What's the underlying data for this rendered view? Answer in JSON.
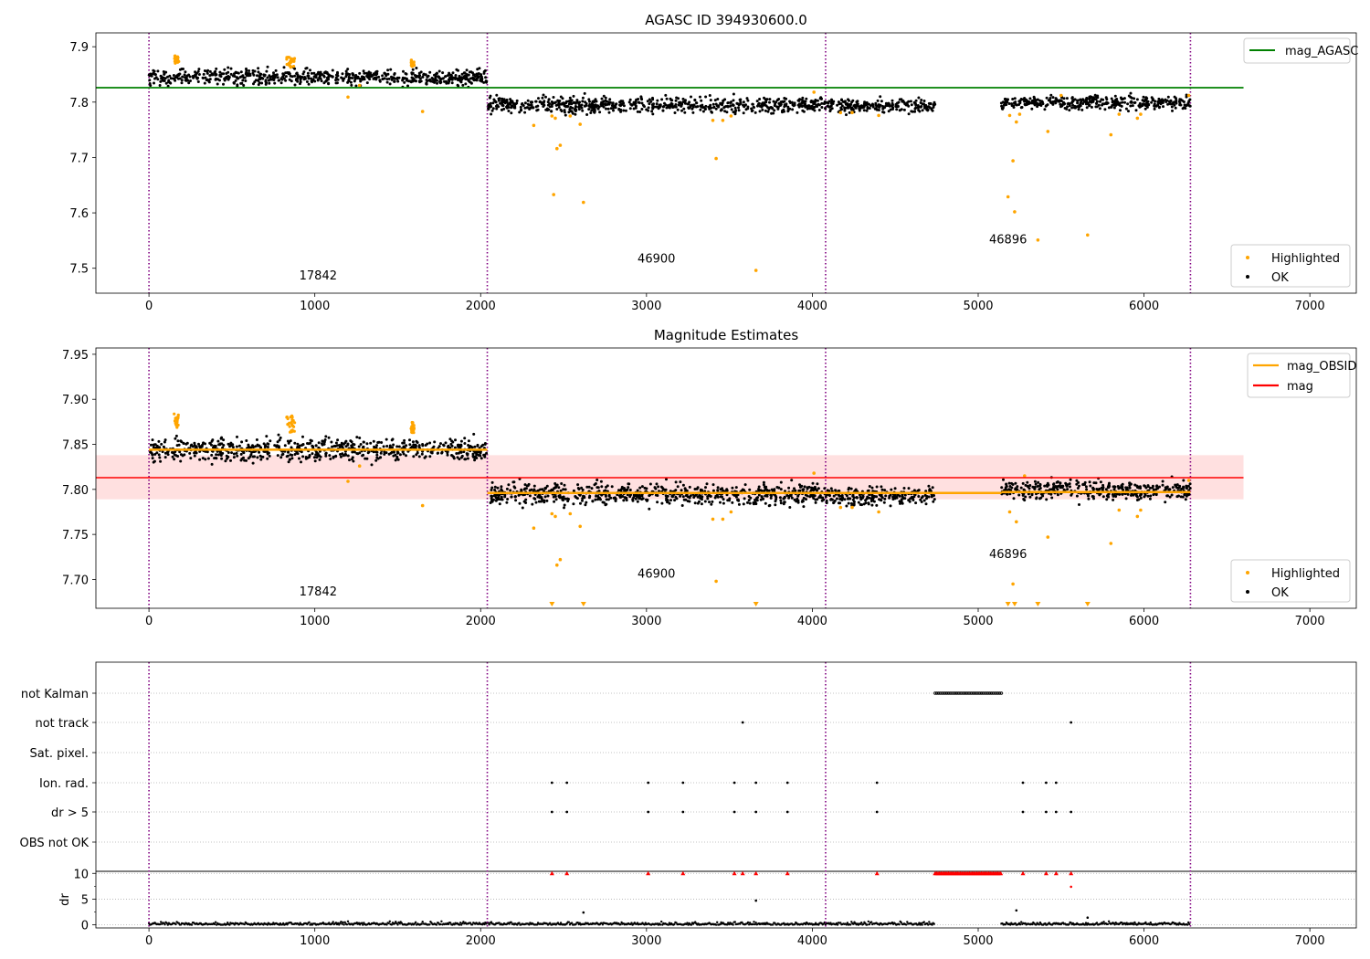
{
  "chart_data": [
    {
      "type": "scatter",
      "title": "AGASC ID 394930600.0",
      "xlim": [
        -320,
        7280
      ],
      "ylim": [
        7.455,
        7.925
      ],
      "x_ticks": [
        0,
        1000,
        2000,
        3000,
        4000,
        5000,
        6000,
        7000
      ],
      "y_ticks": [
        7.5,
        7.6,
        7.7,
        7.8,
        7.9
      ],
      "y_tick_labels": [
        "7.5",
        "7.6",
        "7.7",
        "7.8",
        "7.9"
      ],
      "obsid_boundaries": [
        0,
        2040,
        4080,
        6280
      ],
      "obsid_labels": [
        {
          "text": "17842",
          "x": 1020,
          "y": 7.48
        },
        {
          "text": "46900",
          "x": 3060,
          "y": 7.51
        },
        {
          "text": "46896",
          "x": 5180,
          "y": 7.545
        }
      ],
      "reference_line": {
        "name": "mag_AGASC",
        "value": 7.826,
        "x_range": [
          -320,
          6600
        ],
        "color": "#008000"
      },
      "ok_segments": [
        {
          "x0": 0,
          "x1": 2040,
          "mean": 7.845,
          "spread": 0.007
        },
        {
          "x0": 2040,
          "x1": 4080,
          "mean": 7.795,
          "spread": 0.007
        },
        {
          "x0": 4080,
          "x1": 4740,
          "mean": 7.793,
          "spread": 0.006
        },
        {
          "x0": 5140,
          "x1": 6280,
          "mean": 7.799,
          "spread": 0.006
        }
      ],
      "highlighted_clusters": [
        {
          "x0": 150,
          "x1": 180,
          "y0": 7.868,
          "y1": 7.884
        },
        {
          "x0": 830,
          "x1": 880,
          "y0": 7.862,
          "y1": 7.882
        },
        {
          "x0": 1580,
          "x1": 1600,
          "y0": 7.862,
          "y1": 7.876
        }
      ],
      "highlighted_points": [
        {
          "x": 1200,
          "y": 7.809
        },
        {
          "x": 1270,
          "y": 7.83
        },
        {
          "x": 1650,
          "y": 7.783
        },
        {
          "x": 2320,
          "y": 7.758
        },
        {
          "x": 2430,
          "y": 7.775
        },
        {
          "x": 2440,
          "y": 7.633
        },
        {
          "x": 2450,
          "y": 7.771
        },
        {
          "x": 2460,
          "y": 7.716
        },
        {
          "x": 2480,
          "y": 7.722
        },
        {
          "x": 2540,
          "y": 7.775
        },
        {
          "x": 2600,
          "y": 7.76
        },
        {
          "x": 2620,
          "y": 7.619
        },
        {
          "x": 3400,
          "y": 7.767
        },
        {
          "x": 3420,
          "y": 7.698
        },
        {
          "x": 3460,
          "y": 7.767
        },
        {
          "x": 3510,
          "y": 7.775
        },
        {
          "x": 3660,
          "y": 7.496
        },
        {
          "x": 4010,
          "y": 7.818
        },
        {
          "x": 4170,
          "y": 7.781
        },
        {
          "x": 4240,
          "y": 7.781
        },
        {
          "x": 4400,
          "y": 7.776
        },
        {
          "x": 5180,
          "y": 7.629
        },
        {
          "x": 5190,
          "y": 7.776
        },
        {
          "x": 5210,
          "y": 7.694
        },
        {
          "x": 5220,
          "y": 7.602
        },
        {
          "x": 5230,
          "y": 7.764
        },
        {
          "x": 5250,
          "y": 7.778
        },
        {
          "x": 5360,
          "y": 7.551
        },
        {
          "x": 5420,
          "y": 7.747
        },
        {
          "x": 5660,
          "y": 7.56
        },
        {
          "x": 5800,
          "y": 7.741
        },
        {
          "x": 5850,
          "y": 7.778
        },
        {
          "x": 5960,
          "y": 7.771
        },
        {
          "x": 5980,
          "y": 7.778
        },
        {
          "x": 6270,
          "y": 7.812
        },
        {
          "x": 5500,
          "y": 7.812
        }
      ],
      "legend_upper": [
        {
          "name": "mag_AGASC",
          "color": "#008000"
        }
      ],
      "legend_lower": [
        {
          "name": "Highlighted",
          "color": "#ffa500"
        },
        {
          "name": "OK",
          "color": "#000000"
        }
      ]
    },
    {
      "type": "scatter",
      "title": "Magnitude Estimates",
      "xlim": [
        -320,
        7280
      ],
      "ylim": [
        7.668,
        7.957
      ],
      "x_ticks": [
        0,
        1000,
        2000,
        3000,
        4000,
        5000,
        6000,
        7000
      ],
      "y_ticks": [
        7.7,
        7.75,
        7.8,
        7.85,
        7.9,
        7.95
      ],
      "y_tick_labels": [
        "7.70",
        "7.75",
        "7.80",
        "7.85",
        "7.90",
        "7.95"
      ],
      "obsid_boundaries": [
        0,
        2040,
        4080,
        6280
      ],
      "obsid_labels": [
        {
          "text": "17842",
          "x": 1020,
          "y": 7.682
        },
        {
          "text": "46900",
          "x": 3060,
          "y": 7.702
        },
        {
          "text": "46896",
          "x": 5180,
          "y": 7.724
        }
      ],
      "mean_band": {
        "name": "mag",
        "value": 7.813,
        "low": 7.789,
        "high": 7.838,
        "x_range": [
          -320,
          6600
        ],
        "color": "#ff0000"
      },
      "obsid_means": [
        {
          "x0": 0,
          "x1": 2040,
          "value": 7.844
        },
        {
          "x0": 2040,
          "x1": 5140,
          "value": 7.796
        },
        {
          "x0": 5140,
          "x1": 6280,
          "value": 7.797
        }
      ],
      "ok_segments": [
        {
          "x0": 0,
          "x1": 2040,
          "mean": 7.844,
          "spread": 0.006
        },
        {
          "x0": 2040,
          "x1": 4080,
          "mean": 7.795,
          "spread": 0.006
        },
        {
          "x0": 4080,
          "x1": 4740,
          "mean": 7.793,
          "spread": 0.005
        },
        {
          "x0": 5140,
          "x1": 6280,
          "mean": 7.799,
          "spread": 0.005
        }
      ],
      "highlighted_clusters": [
        {
          "x0": 150,
          "x1": 180,
          "y0": 7.868,
          "y1": 7.884
        },
        {
          "x0": 830,
          "x1": 880,
          "y0": 7.862,
          "y1": 7.882
        },
        {
          "x0": 1580,
          "x1": 1600,
          "y0": 7.862,
          "y1": 7.876
        }
      ],
      "highlighted_points": [
        {
          "x": 1200,
          "y": 7.809
        },
        {
          "x": 1270,
          "y": 7.826
        },
        {
          "x": 1650,
          "y": 7.782
        },
        {
          "x": 2320,
          "y": 7.757
        },
        {
          "x": 2430,
          "y": 7.773
        },
        {
          "x": 2450,
          "y": 7.77
        },
        {
          "x": 2460,
          "y": 7.716
        },
        {
          "x": 2480,
          "y": 7.722
        },
        {
          "x": 2540,
          "y": 7.773
        },
        {
          "x": 2600,
          "y": 7.759
        },
        {
          "x": 3400,
          "y": 7.767
        },
        {
          "x": 3420,
          "y": 7.698
        },
        {
          "x": 3460,
          "y": 7.767
        },
        {
          "x": 3510,
          "y": 7.775
        },
        {
          "x": 4010,
          "y": 7.818
        },
        {
          "x": 4170,
          "y": 7.78
        },
        {
          "x": 4240,
          "y": 7.78
        },
        {
          "x": 4400,
          "y": 7.775
        },
        {
          "x": 5190,
          "y": 7.775
        },
        {
          "x": 5210,
          "y": 7.695
        },
        {
          "x": 5230,
          "y": 7.764
        },
        {
          "x": 5420,
          "y": 7.747
        },
        {
          "x": 5800,
          "y": 7.74
        },
        {
          "x": 5850,
          "y": 7.777
        },
        {
          "x": 5960,
          "y": 7.77
        },
        {
          "x": 5980,
          "y": 7.777
        },
        {
          "x": 6270,
          "y": 7.81
        },
        {
          "x": 5280,
          "y": 7.815
        }
      ],
      "clipped_points_x": [
        2430,
        2620,
        3660,
        5180,
        5220,
        5360,
        5660
      ],
      "legend_upper": [
        {
          "name": "mag_OBSID",
          "color": "#ffa500"
        },
        {
          "name": "mag",
          "color": "#ff0000"
        }
      ],
      "legend_lower": [
        {
          "name": "Highlighted",
          "color": "#ffa500"
        },
        {
          "name": "OK",
          "color": "#000000"
        }
      ]
    },
    {
      "type": "scatter",
      "title": "",
      "xlim": [
        -320,
        7280
      ],
      "x_ticks": [
        0,
        1000,
        2000,
        3000,
        4000,
        5000,
        6000,
        7000
      ],
      "obsid_boundaries": [
        0,
        2040,
        4080,
        6280
      ],
      "flag_rows": [
        "not Kalman",
        "not track",
        "Sat. pixel.",
        "Ion. rad.",
        "dr > 5",
        "OBS not OK"
      ],
      "flags": {
        "not Kalman": {
          "ranges": [
            [
              4740,
              5140
            ]
          ],
          "points": []
        },
        "not track": {
          "ranges": [],
          "points": [
            3580,
            5560
          ]
        },
        "Sat. pixel.": {
          "ranges": [],
          "points": []
        },
        "Ion. rad.": {
          "ranges": [],
          "points": [
            2430,
            2520,
            3010,
            3220,
            3530,
            3660,
            3850,
            4390,
            5270,
            5410,
            5470
          ]
        },
        "dr > 5": {
          "ranges": [],
          "points": [
            2430,
            2520,
            3010,
            3220,
            3530,
            3660,
            3850,
            4390,
            5270,
            5410,
            5470,
            5560
          ]
        },
        "OBS not OK": {
          "ranges": [],
          "points": []
        }
      },
      "dr": {
        "ylabel": "dr",
        "y_ticks": [
          0,
          5,
          10
        ],
        "ylim": [
          -0.6,
          10.4
        ],
        "clip_value": 10,
        "baseline_segments": [
          [
            0,
            2040
          ],
          [
            2040,
            4080
          ],
          [
            4080,
            4740
          ],
          [
            5140,
            6280
          ]
        ],
        "clipped_points_x": [
          2430,
          2520,
          3010,
          3220,
          3530,
          3580,
          3660,
          3850,
          4390,
          5270,
          5410,
          5470,
          5560
        ],
        "clipped_ranges": [
          [
            4740,
            5140
          ]
        ],
        "points": [
          {
            "x": 3660,
            "y": 4.7
          },
          {
            "x": 5560,
            "y": 7.4
          },
          {
            "x": 2620,
            "y": 2.4
          },
          {
            "x": 5230,
            "y": 2.8
          },
          {
            "x": 5660,
            "y": 1.4
          }
        ]
      }
    }
  ]
}
